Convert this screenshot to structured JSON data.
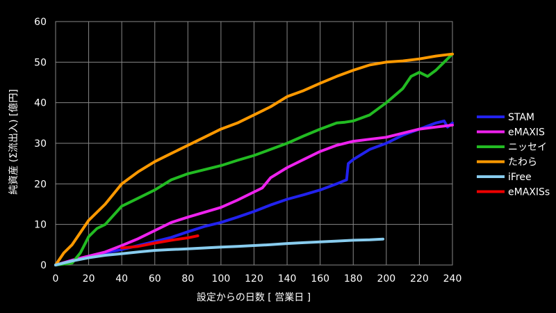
{
  "chart_data": {
    "type": "line",
    "xlabel": "設定からの日数 [ 営業日 ]",
    "ylabel": "純資産 (Σ流出入) [億円]",
    "xlim": [
      0,
      240
    ],
    "ylim": [
      0,
      60
    ],
    "xticks": [
      0,
      20,
      40,
      60,
      80,
      100,
      120,
      140,
      160,
      180,
      200,
      220,
      240
    ],
    "yticks": [
      0,
      10,
      20,
      30,
      40,
      50,
      60
    ],
    "grid": true,
    "legend_position": "right",
    "series": [
      {
        "name": "STAM",
        "color": "#2222ee",
        "points": [
          [
            0,
            0
          ],
          [
            10,
            1
          ],
          [
            20,
            2
          ],
          [
            30,
            3
          ],
          [
            40,
            3.8
          ],
          [
            50,
            4.8
          ],
          [
            60,
            5.8
          ],
          [
            70,
            6.8
          ],
          [
            80,
            8.2
          ],
          [
            90,
            9.5
          ],
          [
            100,
            10.5
          ],
          [
            110,
            11.8
          ],
          [
            120,
            13.2
          ],
          [
            130,
            14.8
          ],
          [
            140,
            16.2
          ],
          [
            150,
            17.3
          ],
          [
            160,
            18.5
          ],
          [
            170,
            20
          ],
          [
            176,
            21
          ],
          [
            177,
            25
          ],
          [
            180,
            26
          ],
          [
            190,
            28.5
          ],
          [
            200,
            30
          ],
          [
            210,
            32
          ],
          [
            220,
            33.5
          ],
          [
            230,
            35
          ],
          [
            235,
            35.5
          ],
          [
            237,
            34
          ],
          [
            240,
            35
          ]
        ]
      },
      {
        "name": "eMAXIS",
        "color": "#ee22ee",
        "points": [
          [
            0,
            0
          ],
          [
            10,
            1.2
          ],
          [
            20,
            2.2
          ],
          [
            30,
            3.2
          ],
          [
            40,
            4.8
          ],
          [
            50,
            6.5
          ],
          [
            60,
            8.5
          ],
          [
            70,
            10.5
          ],
          [
            80,
            11.8
          ],
          [
            90,
            13
          ],
          [
            100,
            14.2
          ],
          [
            110,
            16
          ],
          [
            120,
            18
          ],
          [
            125,
            19
          ],
          [
            130,
            21.5
          ],
          [
            140,
            24
          ],
          [
            150,
            26
          ],
          [
            160,
            28
          ],
          [
            170,
            29.5
          ],
          [
            180,
            30.5
          ],
          [
            190,
            31
          ],
          [
            200,
            31.5
          ],
          [
            210,
            32.5
          ],
          [
            220,
            33.5
          ],
          [
            230,
            34
          ],
          [
            240,
            34.5
          ]
        ]
      },
      {
        "name": "ニッセイ",
        "color": "#22bb22",
        "points": [
          [
            0,
            0
          ],
          [
            10,
            0.5
          ],
          [
            15,
            3
          ],
          [
            20,
            7
          ],
          [
            25,
            9
          ],
          [
            30,
            10
          ],
          [
            40,
            14.5
          ],
          [
            50,
            16.5
          ],
          [
            60,
            18.5
          ],
          [
            70,
            21
          ],
          [
            80,
            22.5
          ],
          [
            90,
            23.5
          ],
          [
            100,
            24.5
          ],
          [
            110,
            25.8
          ],
          [
            120,
            27
          ],
          [
            130,
            28.5
          ],
          [
            140,
            30
          ],
          [
            150,
            31.8
          ],
          [
            160,
            33.5
          ],
          [
            170,
            35
          ],
          [
            175,
            35.2
          ],
          [
            180,
            35.5
          ],
          [
            190,
            37
          ],
          [
            200,
            40
          ],
          [
            210,
            43.5
          ],
          [
            215,
            46.5
          ],
          [
            220,
            47.5
          ],
          [
            225,
            46.5
          ],
          [
            230,
            48
          ],
          [
            235,
            50
          ],
          [
            240,
            52
          ]
        ]
      },
      {
        "name": "たわら",
        "color": "#ff9900",
        "points": [
          [
            0,
            0
          ],
          [
            5,
            3
          ],
          [
            10,
            5
          ],
          [
            15,
            8
          ],
          [
            20,
            11
          ],
          [
            30,
            15
          ],
          [
            40,
            20
          ],
          [
            50,
            23
          ],
          [
            60,
            25.5
          ],
          [
            70,
            27.5
          ],
          [
            80,
            29.5
          ],
          [
            90,
            31.5
          ],
          [
            100,
            33.5
          ],
          [
            110,
            35
          ],
          [
            120,
            37
          ],
          [
            130,
            39
          ],
          [
            140,
            41.5
          ],
          [
            150,
            43
          ],
          [
            160,
            44.8
          ],
          [
            170,
            46.5
          ],
          [
            180,
            48
          ],
          [
            190,
            49.3
          ],
          [
            200,
            50
          ],
          [
            210,
            50.3
          ],
          [
            220,
            50.8
          ],
          [
            230,
            51.5
          ],
          [
            240,
            52
          ]
        ]
      },
      {
        "name": "iFree",
        "color": "#88ccee",
        "points": [
          [
            0,
            0
          ],
          [
            10,
            1
          ],
          [
            20,
            1.8
          ],
          [
            30,
            2.4
          ],
          [
            40,
            2.8
          ],
          [
            50,
            3.2
          ],
          [
            60,
            3.6
          ],
          [
            70,
            3.8
          ],
          [
            80,
            4
          ],
          [
            90,
            4.2
          ],
          [
            100,
            4.4
          ],
          [
            110,
            4.6
          ],
          [
            120,
            4.8
          ],
          [
            130,
            5
          ],
          [
            140,
            5.3
          ],
          [
            150,
            5.5
          ],
          [
            160,
            5.7
          ],
          [
            170,
            5.9
          ],
          [
            180,
            6.1
          ],
          [
            190,
            6.2
          ],
          [
            198,
            6.4
          ]
        ]
      },
      {
        "name": "eMAXISs",
        "color": "#ee0000",
        "points": [
          [
            40,
            4.2
          ],
          [
            50,
            4.6
          ],
          [
            60,
            5.4
          ],
          [
            70,
            6.1
          ],
          [
            80,
            6.7
          ],
          [
            86,
            7.2
          ]
        ]
      }
    ]
  }
}
